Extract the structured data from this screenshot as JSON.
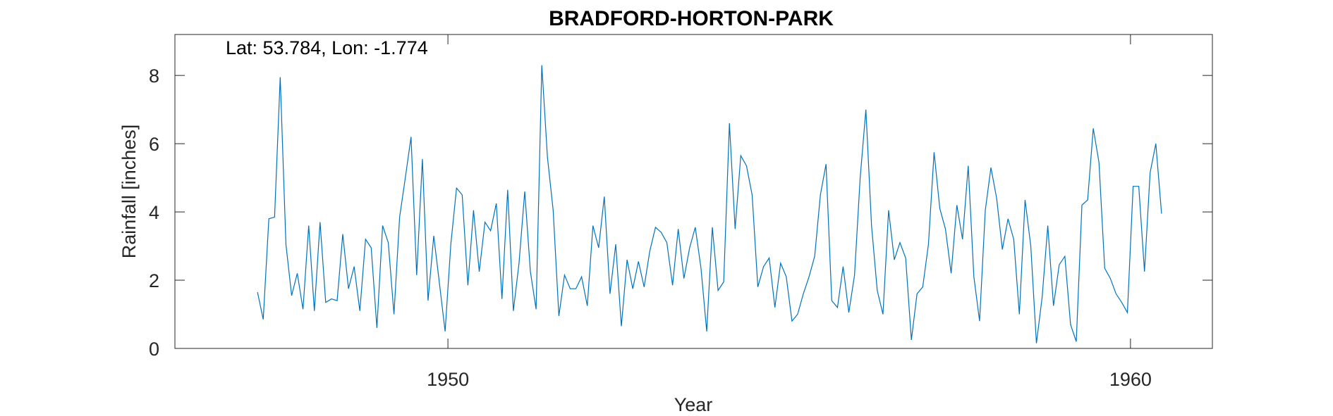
{
  "chart_data": {
    "type": "line",
    "title": "BRADFORD-HORTON-PARK",
    "annotation": "Lat: 53.784, Lon: -1.774",
    "xlabel": "Year",
    "ylabel": "Rainfall [inches]",
    "xlim": [
      1946.0,
      1961.2
    ],
    "ylim": [
      0,
      9.2
    ],
    "xticks": [
      1950,
      1960
    ],
    "yticks": [
      0,
      2,
      4,
      6,
      8
    ],
    "grid": false,
    "line_color": "#0072BD",
    "series": [
      {
        "x_start": 1947.21,
        "x_step": 0.0833,
        "values": [
          1.65,
          0.85,
          3.8,
          3.85,
          7.95,
          3.05,
          1.55,
          2.2,
          1.15,
          3.6,
          1.1,
          3.7,
          1.35,
          1.45,
          1.4,
          3.35,
          1.75,
          2.4,
          1.1,
          3.2,
          2.95,
          0.6,
          3.6,
          3.1,
          1.0,
          3.85,
          5.0,
          6.2,
          2.15,
          5.55,
          1.4,
          3.3,
          1.9,
          0.5,
          3.05,
          4.7,
          4.5,
          1.85,
          4.05,
          2.25,
          3.7,
          3.45,
          4.25,
          1.45,
          4.65,
          1.1,
          2.5,
          4.6,
          2.25,
          1.15,
          8.3,
          5.6,
          4.05,
          0.95,
          2.15,
          1.75,
          1.75,
          2.1,
          1.25,
          3.6,
          2.95,
          4.45,
          1.6,
          3.05,
          0.65,
          2.6,
          1.75,
          2.55,
          1.8,
          2.85,
          3.55,
          3.4,
          3.1,
          1.85,
          3.5,
          2.05,
          2.95,
          3.55,
          2.35,
          0.5,
          3.55,
          1.7,
          1.95,
          6.6,
          3.5,
          5.65,
          5.35,
          4.5,
          1.8,
          2.4,
          2.65,
          1.2,
          2.5,
          2.1,
          0.8,
          1.0,
          1.6,
          2.1,
          2.7,
          4.5,
          5.4,
          1.4,
          1.2,
          2.4,
          1.05,
          2.15,
          5.0,
          7.0,
          3.6,
          1.7,
          1.0,
          4.05,
          2.6,
          3.1,
          2.65,
          0.25,
          1.6,
          1.8,
          3.05,
          5.75,
          4.1,
          3.5,
          2.2,
          4.2,
          3.2,
          5.35,
          2.1,
          0.8,
          4.05,
          5.3,
          4.4,
          2.9,
          3.8,
          3.2,
          1.0,
          4.35,
          3.0,
          0.15,
          1.5,
          3.6,
          1.25,
          2.45,
          2.7,
          0.7,
          0.2,
          4.2,
          4.35,
          6.45,
          5.45,
          2.35,
          2.05,
          1.6,
          1.35,
          1.05,
          4.75,
          4.75,
          2.25,
          5.15,
          6.0,
          3.95
        ]
      }
    ]
  }
}
